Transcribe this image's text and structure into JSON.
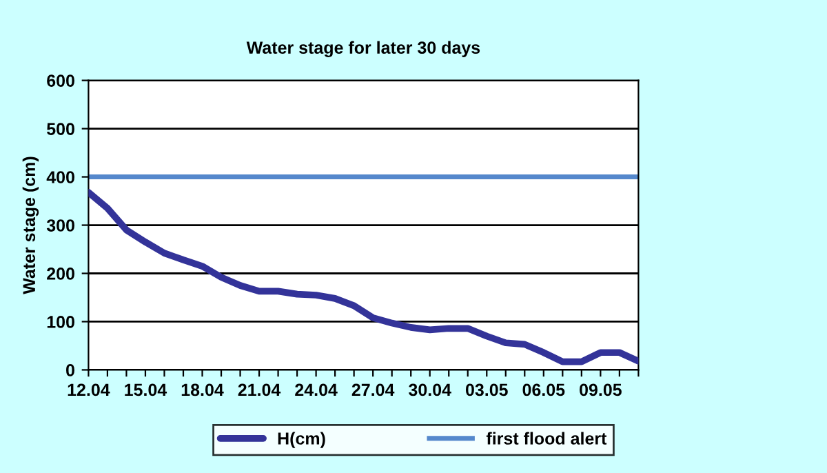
{
  "chart_data": {
    "type": "line",
    "title": "Water stage for later 30 days",
    "ylabel": "Water stage (cm)",
    "categories": [
      "12.04",
      null,
      null,
      "15.04",
      null,
      null,
      "18.04",
      null,
      null,
      "21.04",
      null,
      null,
      "24.04",
      null,
      null,
      "27.04",
      null,
      null,
      "30.04",
      null,
      null,
      "03.05",
      null,
      null,
      "06.05",
      null,
      null,
      "09.05",
      null,
      null
    ],
    "series": [
      {
        "name": "H(cm)",
        "color": "#333399",
        "values": [
          368,
          335,
          290,
          265,
          242,
          228,
          215,
          192,
          175,
          163,
          163,
          157,
          155,
          148,
          133,
          108,
          97,
          88,
          83,
          86,
          86,
          70,
          56,
          53,
          36,
          17,
          17,
          36,
          36,
          18
        ]
      }
    ],
    "ref_lines": [
      {
        "axis": "y",
        "value": 400,
        "label": "first flood alert",
        "color": "#5588cc"
      }
    ],
    "ylim": [
      0,
      600
    ],
    "yticks": [
      0,
      100,
      200,
      300,
      400,
      500,
      600
    ],
    "grid": "y",
    "legend": "bottom",
    "marker": "none",
    "line_style": "solid"
  }
}
